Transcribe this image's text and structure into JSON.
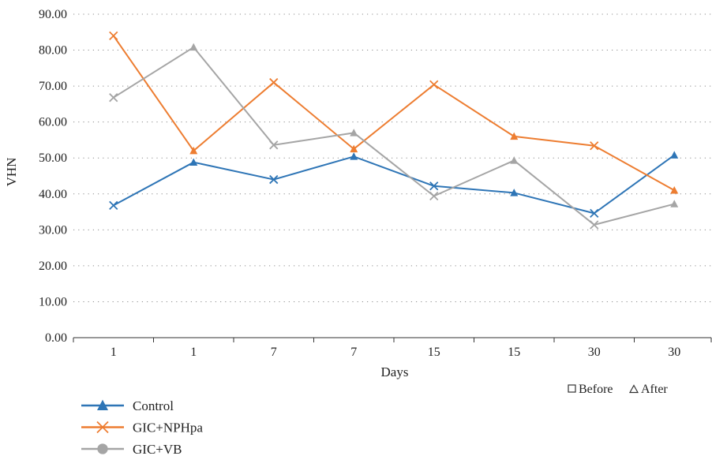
{
  "chart_data": {
    "type": "line",
    "title": "",
    "xlabel": "Days",
    "ylabel": "VHN",
    "ylim": [
      0,
      90
    ],
    "y_tick_step": 10,
    "y_tick_labels": [
      "0.00",
      "10.00",
      "20.00",
      "30.00",
      "40.00",
      "50.00",
      "60.00",
      "70.00",
      "80.00",
      "90.00"
    ],
    "categories": [
      "1",
      "1",
      "7",
      "7",
      "15",
      "15",
      "30",
      "30"
    ],
    "grid": "horizontal dotted",
    "legend_placement": "bottom-left",
    "series": [
      {
        "name": "Control",
        "color": "#2e75b6",
        "values": [
          36.8,
          48.8,
          44.0,
          50.4,
          42.2,
          40.3,
          34.6,
          50.8
        ]
      },
      {
        "name": "GIC+NPHpa",
        "color": "#ed7d31",
        "values": [
          84.0,
          52.0,
          71.0,
          52.5,
          70.4,
          56.0,
          53.4,
          41.0
        ]
      },
      {
        "name": "GIC+VB",
        "color": "#a5a5a5",
        "values": [
          66.8,
          80.8,
          53.6,
          57.0,
          39.4,
          49.3,
          31.4,
          37.2
        ]
      }
    ],
    "legend_markers": [
      "triangle",
      "x",
      "circle"
    ],
    "point_markers": [
      "x",
      "triangle",
      "x",
      "triangle",
      "x",
      "triangle",
      "x",
      "triangle"
    ],
    "note": {
      "before_label": "Before",
      "after_label": "After"
    }
  }
}
